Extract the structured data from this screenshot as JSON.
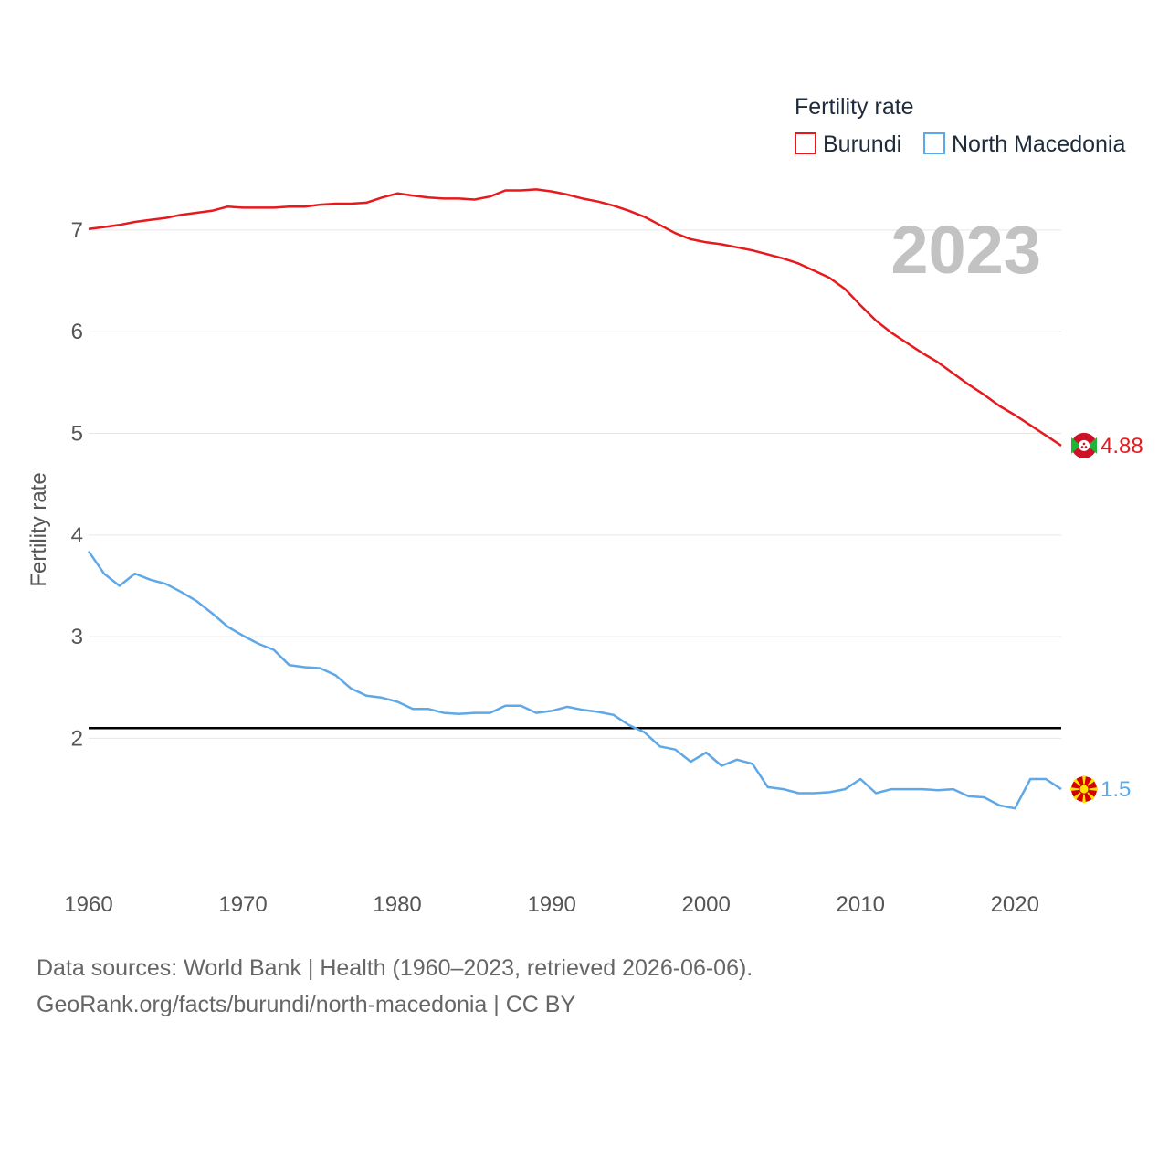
{
  "chart_data": {
    "type": "line",
    "year_label": "2023",
    "ylabel": "Fertility rate",
    "xlim": [
      1960,
      2023
    ],
    "ylim": [
      0.8,
      7.7
    ],
    "x_ticks": [
      1960,
      1970,
      1980,
      1990,
      2000,
      2010,
      2020
    ],
    "y_ticks": [
      2,
      3,
      4,
      5,
      6,
      7
    ],
    "reference_line": 2.1,
    "legend": {
      "title": "Fertility rate",
      "position": "top-right"
    },
    "x": [
      1960,
      1961,
      1962,
      1963,
      1964,
      1965,
      1966,
      1967,
      1968,
      1969,
      1970,
      1971,
      1972,
      1973,
      1974,
      1975,
      1976,
      1977,
      1978,
      1979,
      1980,
      1981,
      1982,
      1983,
      1984,
      1985,
      1986,
      1987,
      1988,
      1989,
      1990,
      1991,
      1992,
      1993,
      1994,
      1995,
      1996,
      1997,
      1998,
      1999,
      2000,
      2001,
      2002,
      2003,
      2004,
      2005,
      2006,
      2007,
      2008,
      2009,
      2010,
      2011,
      2012,
      2013,
      2014,
      2015,
      2016,
      2017,
      2018,
      2019,
      2020,
      2021,
      2022,
      2023
    ],
    "series": [
      {
        "name": "Burundi",
        "color": "#e8191c",
        "end_label": "4.88",
        "values": [
          7.01,
          7.03,
          7.05,
          7.08,
          7.1,
          7.12,
          7.15,
          7.17,
          7.19,
          7.23,
          7.22,
          7.22,
          7.22,
          7.23,
          7.23,
          7.25,
          7.26,
          7.26,
          7.27,
          7.32,
          7.36,
          7.34,
          7.32,
          7.31,
          7.31,
          7.3,
          7.33,
          7.39,
          7.39,
          7.4,
          7.38,
          7.35,
          7.31,
          7.28,
          7.24,
          7.19,
          7.13,
          7.05,
          6.97,
          6.91,
          6.88,
          6.86,
          6.83,
          6.8,
          6.76,
          6.72,
          6.67,
          6.6,
          6.53,
          6.42,
          6.26,
          6.11,
          5.99,
          5.89,
          5.79,
          5.7,
          5.59,
          5.48,
          5.38,
          5.27,
          5.18,
          5.08,
          4.98,
          4.88
        ]
      },
      {
        "name": "North Macedonia",
        "color": "#5fa8e8",
        "end_label": "1.5",
        "values": [
          3.84,
          3.62,
          3.5,
          3.62,
          3.56,
          3.52,
          3.44,
          3.35,
          3.23,
          3.1,
          3.01,
          2.93,
          2.87,
          2.72,
          2.7,
          2.69,
          2.62,
          2.49,
          2.42,
          2.4,
          2.36,
          2.29,
          2.29,
          2.25,
          2.24,
          2.25,
          2.25,
          2.32,
          2.32,
          2.25,
          2.27,
          2.31,
          2.28,
          2.26,
          2.23,
          2.13,
          2.06,
          1.92,
          1.89,
          1.77,
          1.86,
          1.73,
          1.79,
          1.75,
          1.52,
          1.5,
          1.46,
          1.46,
          1.47,
          1.5,
          1.6,
          1.46,
          1.5,
          1.5,
          1.5,
          1.49,
          1.5,
          1.43,
          1.42,
          1.34,
          1.31,
          1.6,
          1.6,
          1.5
        ]
      }
    ]
  },
  "flags": {
    "burundi": "burundi-flag-icon",
    "north_macedonia": "north-macedonia-flag-icon"
  },
  "source": {
    "line1": "Data sources: World Bank | Health (1960–2023, retrieved 2026-06-06).",
    "line2": "GeoRank.org/facts/burundi/north-macedonia | CC BY"
  }
}
